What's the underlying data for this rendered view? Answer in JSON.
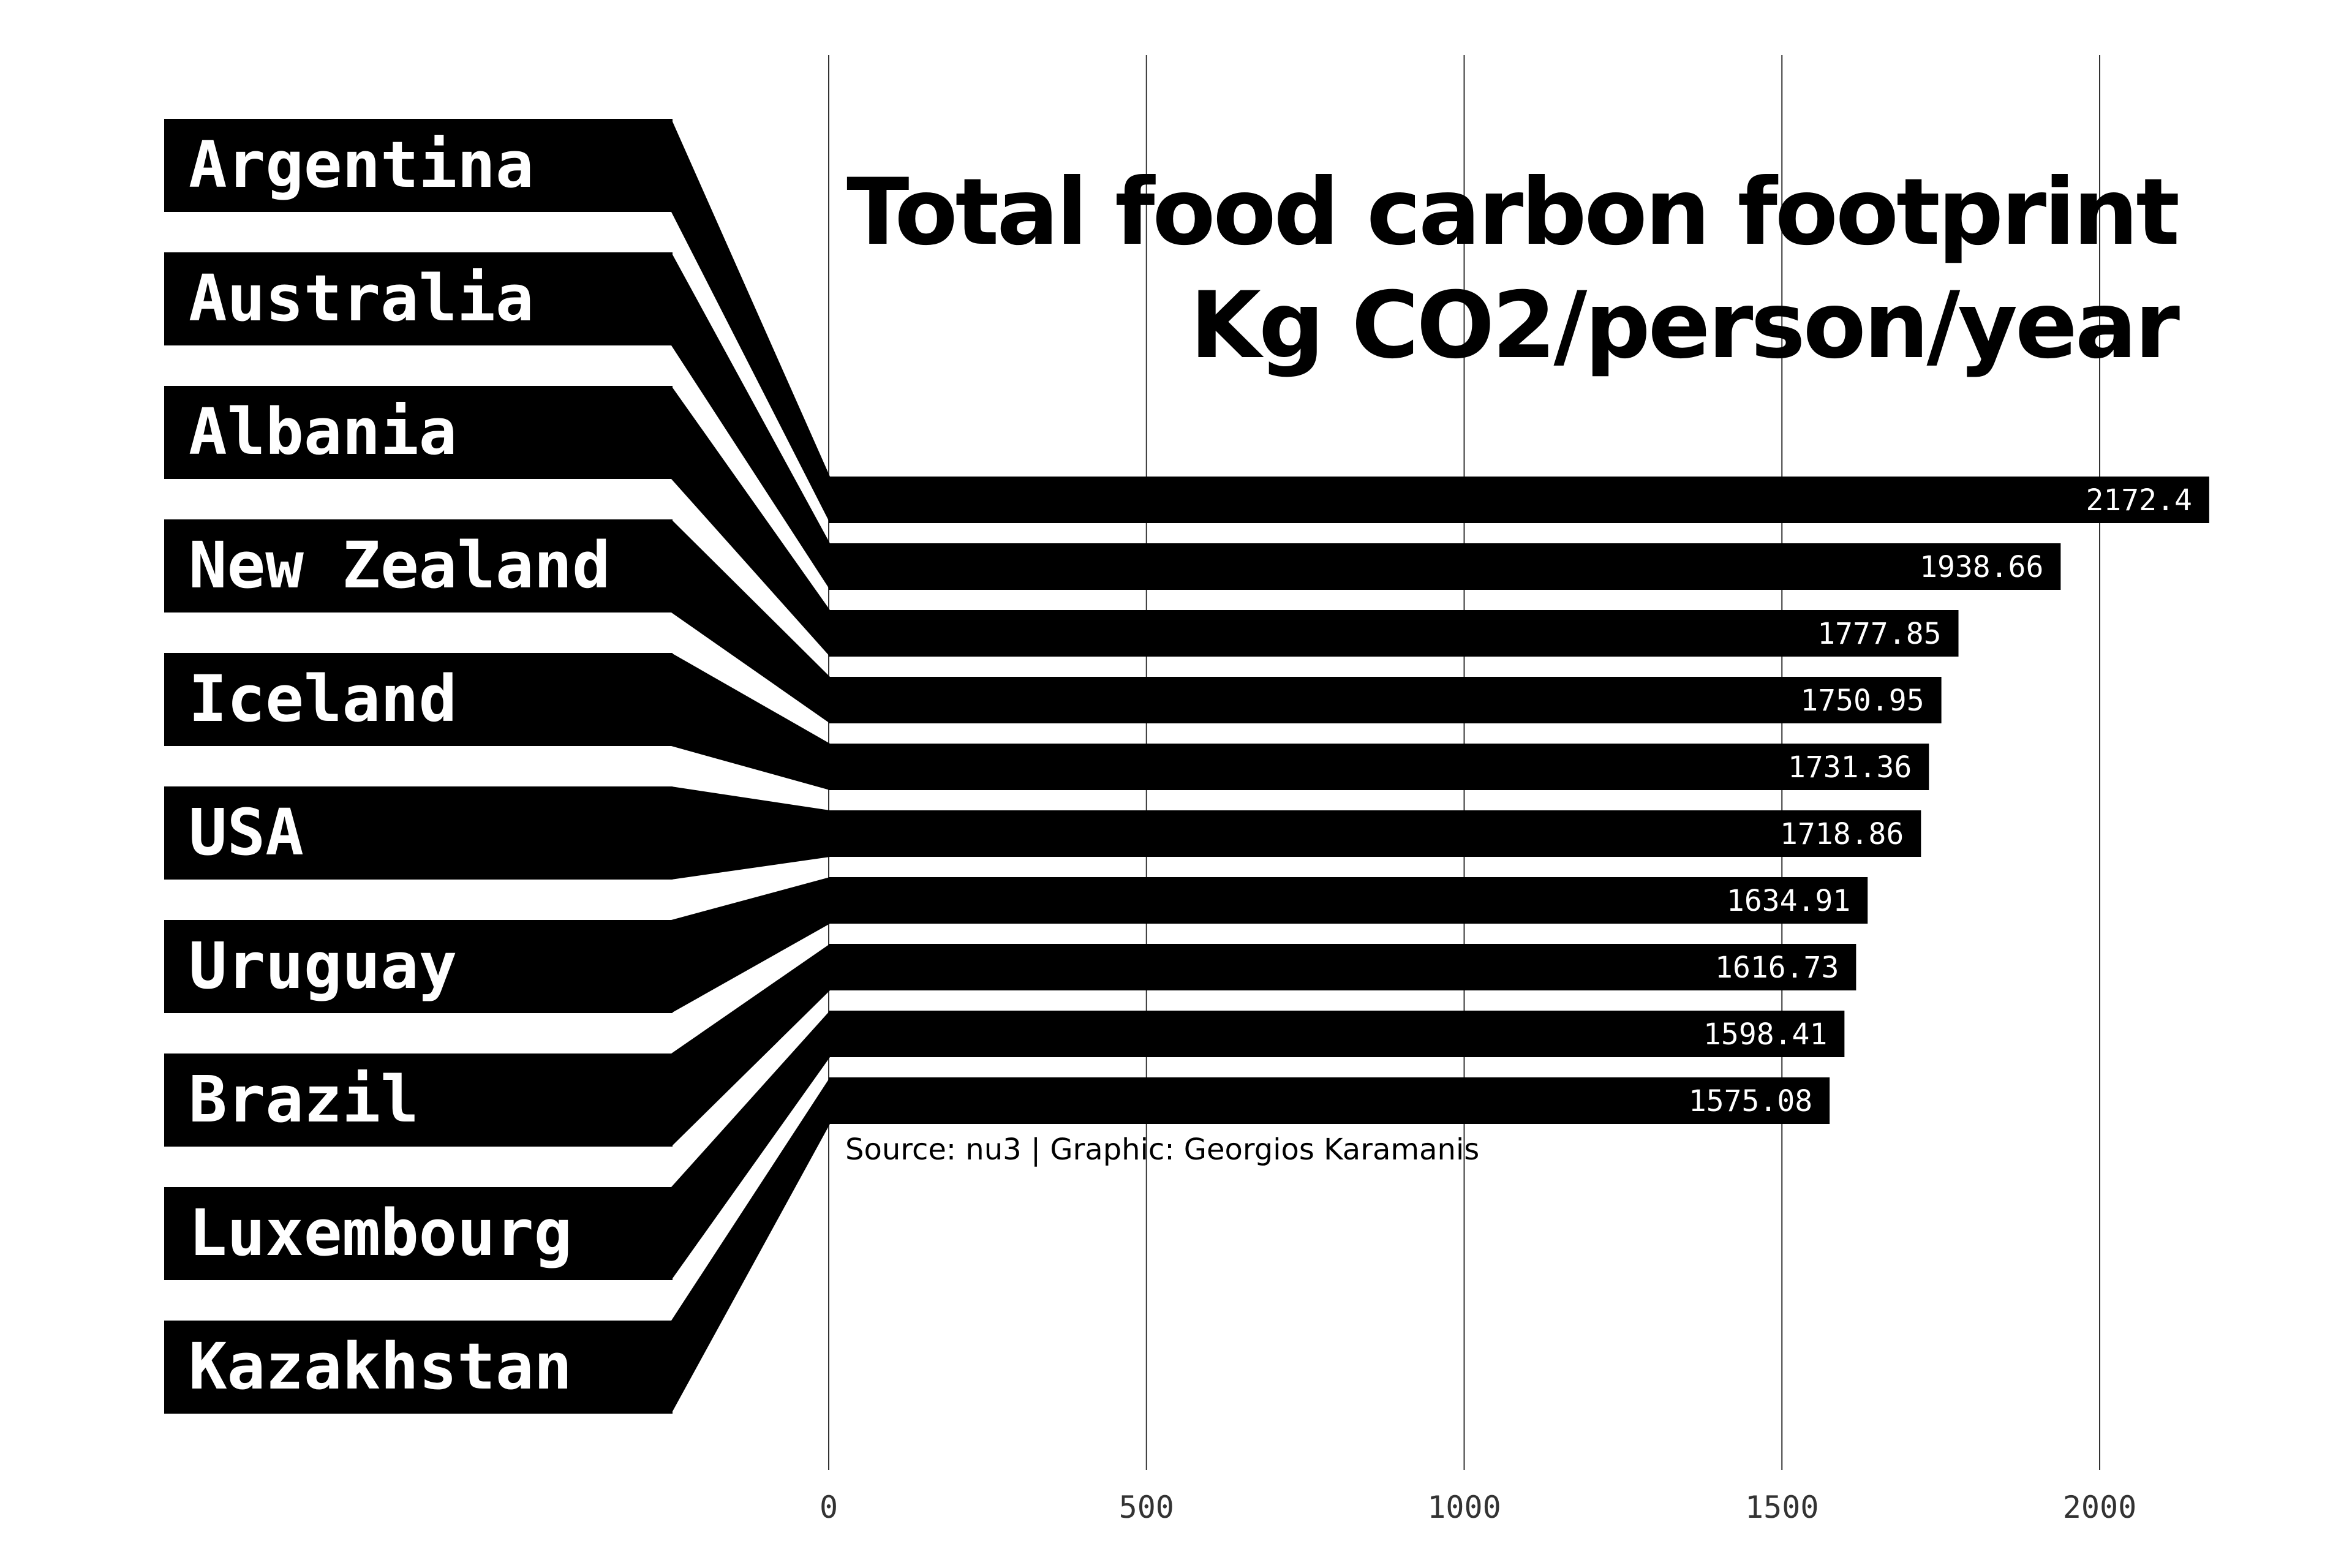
{
  "chart_data": {
    "type": "bar",
    "title_line1": "Total food carbon footprint",
    "title_line2": "Kg CO2/person/year",
    "caption": "Source: nu3 | Graphic: Georgios Karamanis",
    "categories": [
      "Argentina",
      "Australia",
      "Albania",
      "New Zealand",
      "Iceland",
      "USA",
      "Uruguay",
      "Brazil",
      "Luxembourg",
      "Kazakhstan"
    ],
    "values": [
      2172.4,
      1938.66,
      1777.85,
      1750.95,
      1731.36,
      1718.86,
      1634.91,
      1616.73,
      1598.41,
      1575.08
    ],
    "value_labels": [
      "2172.4",
      "1938.66",
      "1777.85",
      "1750.95",
      "1731.36",
      "1718.86",
      "1634.91",
      "1616.73",
      "1598.41",
      "1575.08"
    ],
    "xticks": [
      0,
      500,
      1000,
      1500,
      2000
    ],
    "xtick_labels": [
      "0",
      "500",
      "1000",
      "1500",
      "2000"
    ],
    "xlim": [
      0,
      2200
    ],
    "orientation": "horizontal",
    "grid": "vertical",
    "colors": {
      "bar": "#000000",
      "text_on_bar": "#ffffff",
      "grid": "#333333"
    }
  }
}
